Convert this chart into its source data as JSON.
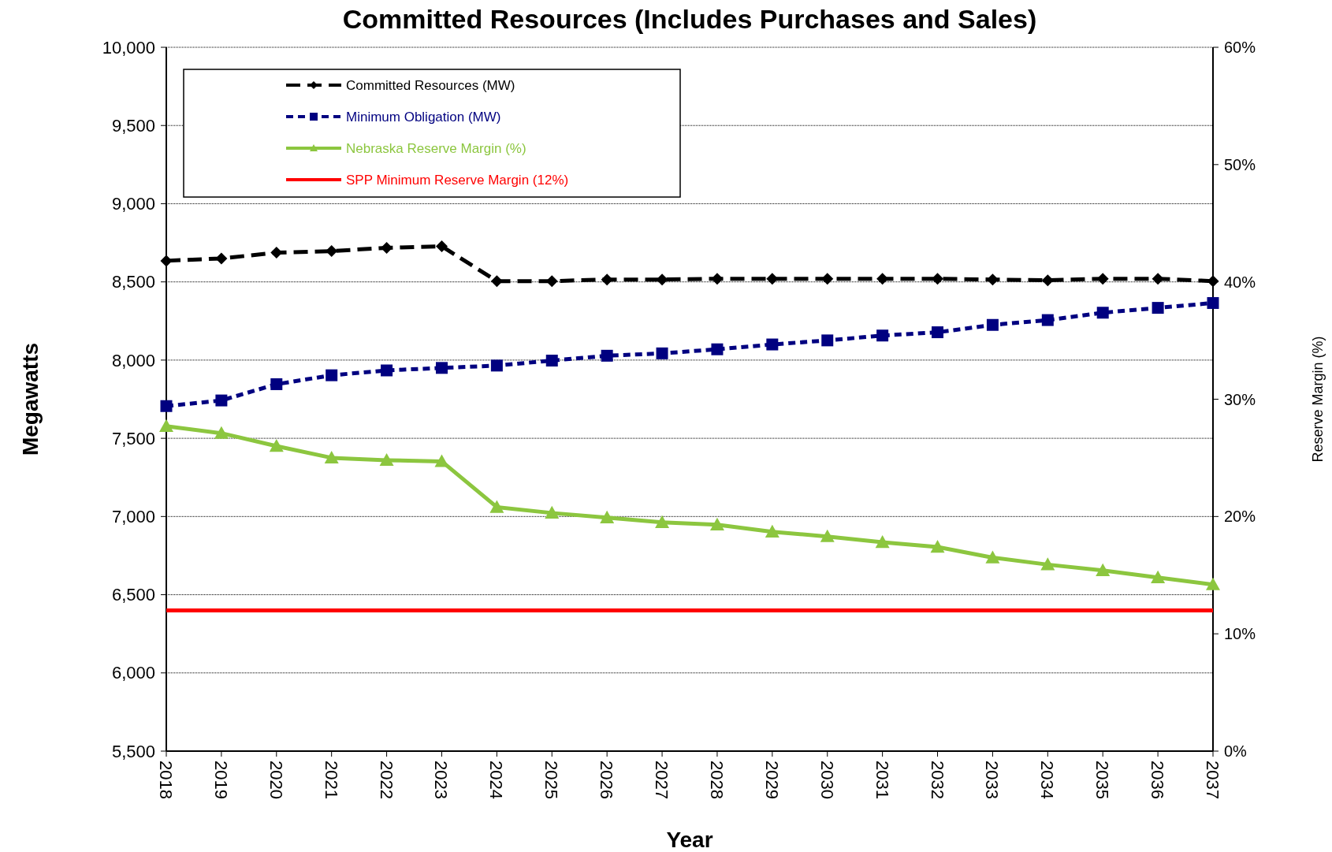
{
  "chart_data": {
    "type": "line",
    "title": "Committed Resources (Includes Purchases and Sales)",
    "xlabel": "Year",
    "ylabel": "Megawatts",
    "y2label": "Reserve Margin (%)",
    "categories": [
      "2018",
      "2019",
      "2020",
      "2021",
      "2022",
      "2023",
      "2024",
      "2025",
      "2026",
      "2027",
      "2028",
      "2029",
      "2030",
      "2031",
      "2032",
      "2033",
      "2034",
      "2035",
      "2036",
      "2037"
    ],
    "series": [
      {
        "name": "Committed Resources (MW)",
        "color": "#000000",
        "marker": "diamond",
        "line_style": "dashed",
        "values": [
          8635,
          8650,
          8687,
          8697,
          8718,
          8728,
          8505,
          8505,
          8515,
          8515,
          8520,
          8520,
          8520,
          8520,
          8520,
          8515,
          8510,
          8520,
          8520,
          8505
        ]
      },
      {
        "name": "Minimum Obligation (MW)",
        "color": "#000080",
        "marker": "square",
        "line_style": "dotted",
        "values": [
          7706,
          7742,
          7846,
          7903,
          7934,
          7950,
          7965,
          7997,
          8028,
          8043,
          8069,
          8100,
          8126,
          8157,
          8178,
          8225,
          8256,
          8303,
          8334,
          8365
        ]
      },
      {
        "name": "Nebraska Reserve Margin (%)",
        "color": "#8cc63f",
        "marker": "triangle",
        "line_style": "solid",
        "axis": "y2",
        "values": [
          27.7,
          27.1,
          26.0,
          25.0,
          24.8,
          24.7,
          20.8,
          20.3,
          19.9,
          19.5,
          19.3,
          18.7,
          18.3,
          17.8,
          17.4,
          16.5,
          15.9,
          15.4,
          14.8,
          14.2
        ]
      },
      {
        "name": "SPP Minimum Reserve Margin (12%)",
        "color": "#ff0000",
        "marker": "none",
        "line_style": "solid",
        "axis": "y2",
        "values": [
          12,
          12,
          12,
          12,
          12,
          12,
          12,
          12,
          12,
          12,
          12,
          12,
          12,
          12,
          12,
          12,
          12,
          12,
          12,
          12
        ]
      }
    ],
    "ylim": [
      5500,
      10000
    ],
    "yticks": [
      {
        "value": 5500,
        "label": "5,500"
      },
      {
        "value": 6000,
        "label": "6,000"
      },
      {
        "value": 6500,
        "label": "6,500"
      },
      {
        "value": 7000,
        "label": "7,000"
      },
      {
        "value": 7500,
        "label": "7,500"
      },
      {
        "value": 8000,
        "label": "8,000"
      },
      {
        "value": 8500,
        "label": "8,500"
      },
      {
        "value": 9000,
        "label": "9,000"
      },
      {
        "value": 9500,
        "label": "9,500"
      },
      {
        "value": 10000,
        "label": "10,000"
      }
    ],
    "y2lim": [
      0,
      60
    ],
    "y2ticks": [
      {
        "value": 0,
        "label": "0%"
      },
      {
        "value": 10,
        "label": "10%"
      },
      {
        "value": 20,
        "label": "20%"
      },
      {
        "value": 30,
        "label": "30%"
      },
      {
        "value": 40,
        "label": "40%"
      },
      {
        "value": 50,
        "label": "50%"
      },
      {
        "value": 60,
        "label": "60%"
      }
    ],
    "grid": "y",
    "legend": "top left"
  }
}
